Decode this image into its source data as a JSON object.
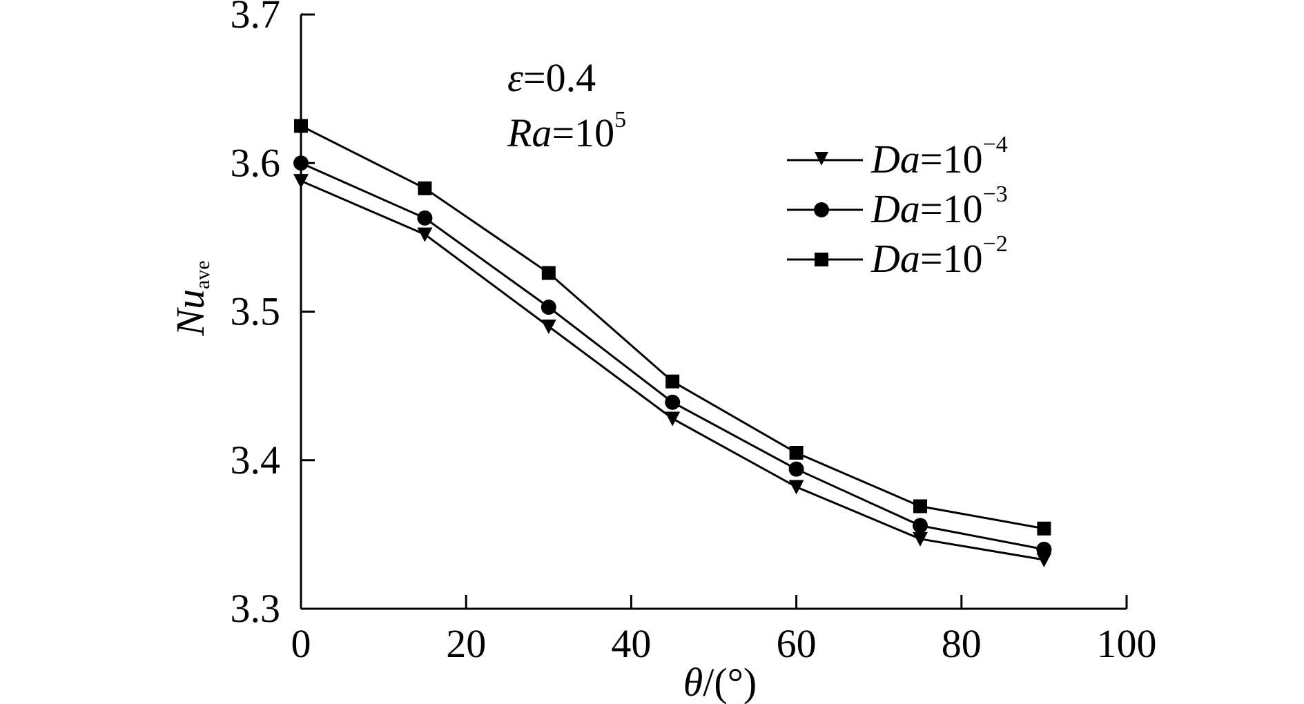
{
  "chart_data": {
    "type": "line",
    "x": [
      0,
      15,
      30,
      45,
      60,
      75,
      90
    ],
    "xlim": [
      0,
      100
    ],
    "ylim": [
      3.3,
      3.7
    ],
    "x_ticks": [
      "0",
      "20",
      "40",
      "60",
      "80",
      "100"
    ],
    "x_tick_values": [
      0,
      20,
      40,
      60,
      80,
      100
    ],
    "y_ticks": [
      "3.3",
      "3.4",
      "3.5",
      "3.6",
      "3.7"
    ],
    "y_tick_values": [
      3.3,
      3.4,
      3.5,
      3.6,
      3.7
    ],
    "xlabel": {
      "symbol": "θ",
      "unit": "/(°)"
    },
    "ylabel": {
      "main": "Nu",
      "subscript": "ave"
    },
    "annotation": {
      "line1": {
        "symbol": "ε",
        "text": "=0.4"
      },
      "line2": {
        "symbol": "Ra",
        "text": "=10",
        "exponent": "5"
      }
    },
    "legend_position": "top-right",
    "series": [
      {
        "symbol": "Da",
        "eq": "=10",
        "exponent": "−4",
        "marker": "triangle-down",
        "values": [
          3.588,
          3.552,
          3.49,
          3.428,
          3.382,
          3.347,
          3.333
        ]
      },
      {
        "symbol": "Da",
        "eq": "=10",
        "exponent": "−3",
        "marker": "circle",
        "values": [
          3.6,
          3.563,
          3.503,
          3.439,
          3.394,
          3.356,
          3.34
        ]
      },
      {
        "symbol": "Da",
        "eq": "=10",
        "exponent": "−2",
        "marker": "square",
        "values": [
          3.625,
          3.583,
          3.526,
          3.453,
          3.405,
          3.369,
          3.354
        ]
      }
    ],
    "colors": {
      "ink": "#000000",
      "background": "#ffffff"
    }
  }
}
